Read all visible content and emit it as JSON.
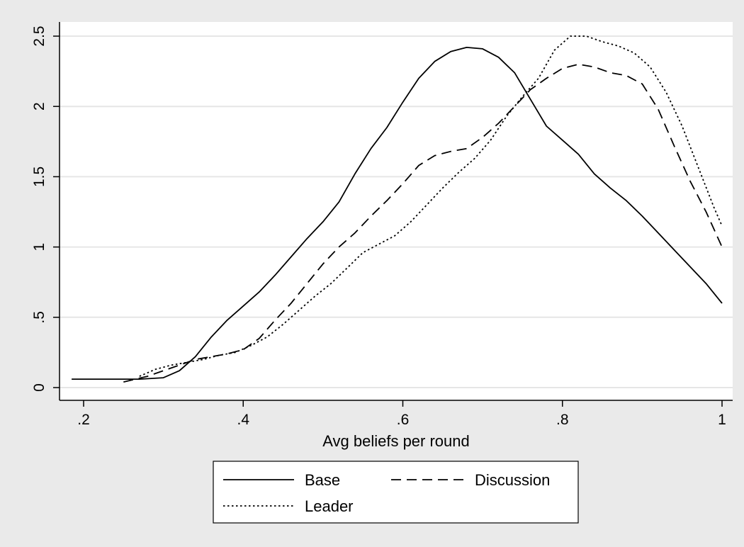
{
  "chart_data": {
    "type": "line",
    "title": "",
    "xlabel": "Avg beliefs per round",
    "ylabel": "",
    "xlim": [
      0.185,
      1.0
    ],
    "ylim": [
      0,
      2.5
    ],
    "xticks": [
      0.2,
      0.4,
      0.6,
      0.8,
      1.0
    ],
    "xtick_labels": [
      ".2",
      ".4",
      ".6",
      ".8",
      "1"
    ],
    "yticks": [
      0,
      0.5,
      1,
      1.5,
      2,
      2.5
    ],
    "ytick_labels": [
      "0",
      ".5",
      "1",
      "1.5",
      "2",
      "2.5"
    ],
    "grid": "horizontal",
    "legend_position": "bottom",
    "series": [
      {
        "name": "Base",
        "style": "solid",
        "color": "#000000",
        "x": [
          0.185,
          0.2,
          0.22,
          0.25,
          0.27,
          0.3,
          0.32,
          0.34,
          0.36,
          0.38,
          0.4,
          0.42,
          0.44,
          0.46,
          0.48,
          0.5,
          0.52,
          0.54,
          0.56,
          0.58,
          0.6,
          0.62,
          0.64,
          0.66,
          0.68,
          0.7,
          0.72,
          0.74,
          0.76,
          0.78,
          0.8,
          0.82,
          0.84,
          0.86,
          0.88,
          0.9,
          0.92,
          0.94,
          0.96,
          0.98,
          1.0
        ],
        "y": [
          0.06,
          0.06,
          0.06,
          0.06,
          0.06,
          0.07,
          0.12,
          0.22,
          0.36,
          0.48,
          0.58,
          0.68,
          0.8,
          0.93,
          1.06,
          1.18,
          1.32,
          1.52,
          1.7,
          1.85,
          2.03,
          2.2,
          2.32,
          2.39,
          2.42,
          2.41,
          2.35,
          2.24,
          2.05,
          1.86,
          1.76,
          1.66,
          1.52,
          1.42,
          1.33,
          1.22,
          1.1,
          0.98,
          0.86,
          0.74,
          0.6
        ]
      },
      {
        "name": "Discussion",
        "style": "dashed",
        "color": "#000000",
        "x": [
          0.25,
          0.28,
          0.3,
          0.32,
          0.34,
          0.36,
          0.38,
          0.4,
          0.42,
          0.44,
          0.46,
          0.48,
          0.5,
          0.52,
          0.54,
          0.56,
          0.58,
          0.6,
          0.62,
          0.64,
          0.66,
          0.68,
          0.7,
          0.72,
          0.74,
          0.76,
          0.78,
          0.8,
          0.82,
          0.84,
          0.86,
          0.88,
          0.9,
          0.92,
          0.94,
          0.96,
          0.98,
          1.0
        ],
        "y": [
          0.04,
          0.08,
          0.12,
          0.16,
          0.2,
          0.22,
          0.24,
          0.27,
          0.35,
          0.48,
          0.6,
          0.74,
          0.88,
          1.0,
          1.1,
          1.22,
          1.33,
          1.45,
          1.58,
          1.65,
          1.68,
          1.7,
          1.78,
          1.88,
          2.0,
          2.12,
          2.2,
          2.27,
          2.3,
          2.28,
          2.24,
          2.22,
          2.16,
          1.98,
          1.72,
          1.47,
          1.25,
          1.0
        ]
      },
      {
        "name": "Leader",
        "style": "dotted",
        "color": "#000000",
        "x": [
          0.27,
          0.29,
          0.31,
          0.33,
          0.35,
          0.37,
          0.39,
          0.41,
          0.43,
          0.45,
          0.47,
          0.49,
          0.51,
          0.53,
          0.55,
          0.57,
          0.59,
          0.61,
          0.63,
          0.65,
          0.67,
          0.69,
          0.71,
          0.73,
          0.75,
          0.77,
          0.79,
          0.81,
          0.83,
          0.85,
          0.87,
          0.89,
          0.91,
          0.93,
          0.95,
          0.97,
          0.99,
          1.0
        ],
        "y": [
          0.08,
          0.13,
          0.16,
          0.18,
          0.2,
          0.23,
          0.25,
          0.3,
          0.36,
          0.45,
          0.55,
          0.65,
          0.74,
          0.85,
          0.96,
          1.02,
          1.08,
          1.18,
          1.3,
          1.42,
          1.53,
          1.63,
          1.76,
          1.93,
          2.07,
          2.2,
          2.4,
          2.5,
          2.5,
          2.46,
          2.43,
          2.38,
          2.28,
          2.1,
          1.86,
          1.57,
          1.28,
          1.15
        ]
      }
    ]
  }
}
